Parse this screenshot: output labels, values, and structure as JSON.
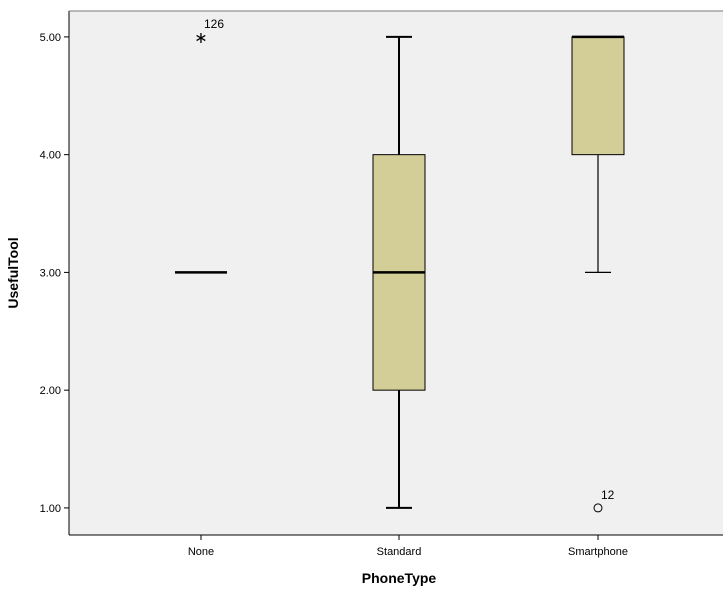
{
  "chart_data": {
    "type": "boxplot",
    "title": "",
    "xlabel": "PhoneType",
    "ylabel": "UsefulTool",
    "ylim": [
      0.77,
      5.22
    ],
    "yticks": [
      1.0,
      2.0,
      3.0,
      4.0,
      5.0
    ],
    "ytick_labels": [
      "1.00",
      "2.00",
      "3.00",
      "4.00",
      "5.00"
    ],
    "grid": false,
    "colors": {
      "plot_background": "#f0f0f0",
      "box_fill": "#d3ce97",
      "line": "#000000"
    },
    "categories": [
      "None",
      "Standard",
      "Smartphone"
    ],
    "boxes": [
      {
        "category": "None",
        "min": 3.0,
        "q1": 3.0,
        "median": 3.0,
        "q3": 3.0,
        "max": 3.0,
        "outliers": [
          {
            "value": 5.0,
            "label": "126",
            "marker": "star"
          }
        ]
      },
      {
        "category": "Standard",
        "min": 1.0,
        "q1": 2.0,
        "median": 3.0,
        "q3": 4.0,
        "max": 5.0,
        "outliers": []
      },
      {
        "category": "Smartphone",
        "min": 3.0,
        "q1": 4.0,
        "median": 5.0,
        "q3": 5.0,
        "max": 5.0,
        "outliers": [
          {
            "value": 1.0,
            "label": "12",
            "marker": "circle"
          }
        ]
      }
    ]
  }
}
